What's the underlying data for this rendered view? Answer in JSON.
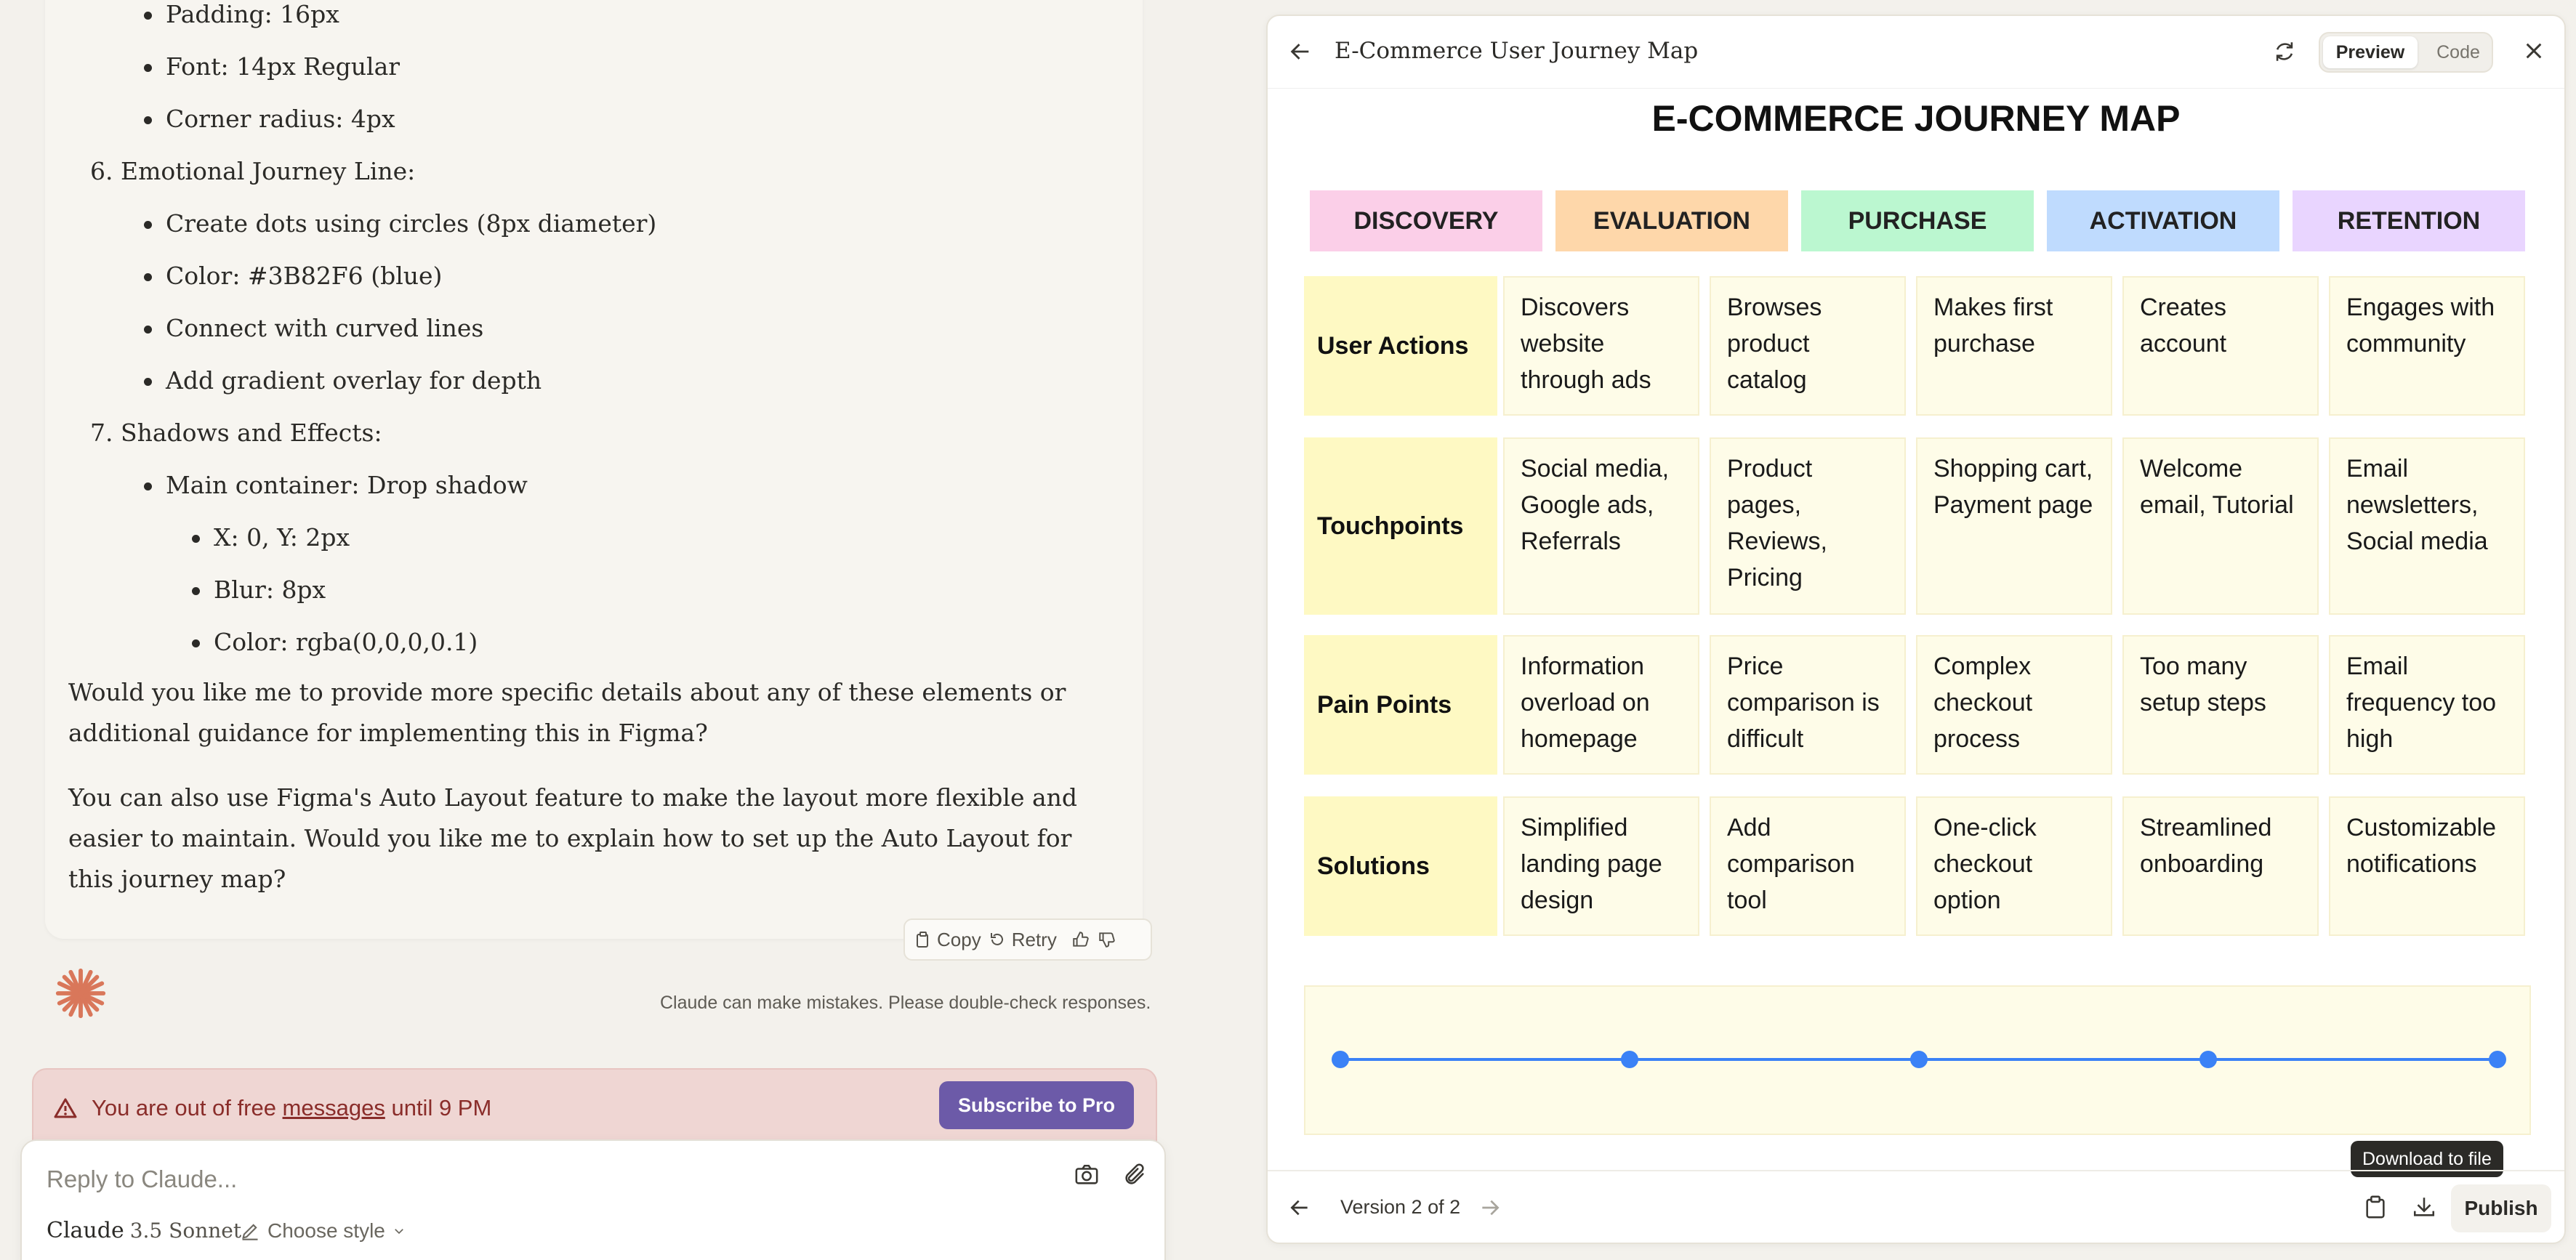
{
  "message": {
    "lines": [
      {
        "text": "Padding: 16px",
        "level": 1
      },
      {
        "text": "Font: 14px Regular",
        "level": 1
      },
      {
        "text": "Corner radius: 4px",
        "level": 1
      },
      {
        "text": "6. Emotional Journey Line:",
        "level": 0
      },
      {
        "text": "Create dots using circles (8px diameter)",
        "level": 1
      },
      {
        "text": "Color: #3B82F6 (blue)",
        "level": 1
      },
      {
        "text": "Connect with curved lines",
        "level": 1
      },
      {
        "text": "Add gradient overlay for depth",
        "level": 1
      },
      {
        "text": "7. Shadows and Effects:",
        "level": 0
      },
      {
        "text": "Main container: Drop shadow",
        "level": 1
      },
      {
        "text": "X: 0, Y: 2px",
        "level": 2
      },
      {
        "text": "Blur: 8px",
        "level": 2
      },
      {
        "text": "Color: rgba(0,0,0,0.1)",
        "level": 2
      }
    ],
    "para1": "Would you like me to provide more specific details about any of these elements or additional guidance for implementing this in Figma?",
    "para2": "You can also use Figma's Auto Layout feature to make the layout more flexible and easier to maintain. Would you like me to explain how to set up the Auto Layout for this journey map?"
  },
  "actions": {
    "copy": "Copy",
    "retry": "Retry"
  },
  "disclaimer": "Claude can make mistakes. Please double-check responses.",
  "banner": {
    "pre": "You are out of free ",
    "link": "messages",
    "post": " until 9 PM",
    "button": "Subscribe to Pro"
  },
  "composer": {
    "placeholder": "Reply to Claude...",
    "model": "Claude",
    "version": "3.5 Sonnet",
    "style": "Choose style"
  },
  "panel": {
    "title": "E-Commerce User Journey Map",
    "tab_preview": "Preview",
    "tab_code": "Code",
    "heading": "E-COMMERCE JOURNEY MAP",
    "stages": [
      {
        "label": "DISCOVERY",
        "color": "#fbcfe8"
      },
      {
        "label": "EVALUATION",
        "color": "#fed7aa"
      },
      {
        "label": "PURCHASE",
        "color": "#bbf7d0"
      },
      {
        "label": "ACTIVATION",
        "color": "#bfdbfe"
      },
      {
        "label": "RETENTION",
        "color": "#e9d5ff"
      }
    ],
    "rows": [
      {
        "label": "User Actions",
        "cells": [
          "Discovers website through ads",
          "Browses product catalog",
          "Makes first purchase",
          "Creates account",
          "Engages with community"
        ]
      },
      {
        "label": "Touchpoints",
        "cells": [
          "Social media, Google ads, Referrals",
          "Product pages, Reviews, Pricing",
          "Shopping cart, Payment page",
          "Welcome email, Tutorial",
          "Email newsletters, Social media"
        ]
      },
      {
        "label": "Pain Points",
        "cells": [
          "Information overload on homepage",
          "Price comparison is difficult",
          "Complex checkout process",
          "Too many setup steps",
          "Email frequency too high"
        ]
      },
      {
        "label": "Solutions",
        "cells": [
          "Simplified landing page design",
          "Add comparison tool",
          "One-click checkout option",
          "Streamlined onboarding",
          "Customizable notifications"
        ]
      }
    ],
    "emotion_line_color": "#3b82f6",
    "tooltip": "Download to file",
    "version": "Version 2 of 2",
    "publish": "Publish"
  }
}
